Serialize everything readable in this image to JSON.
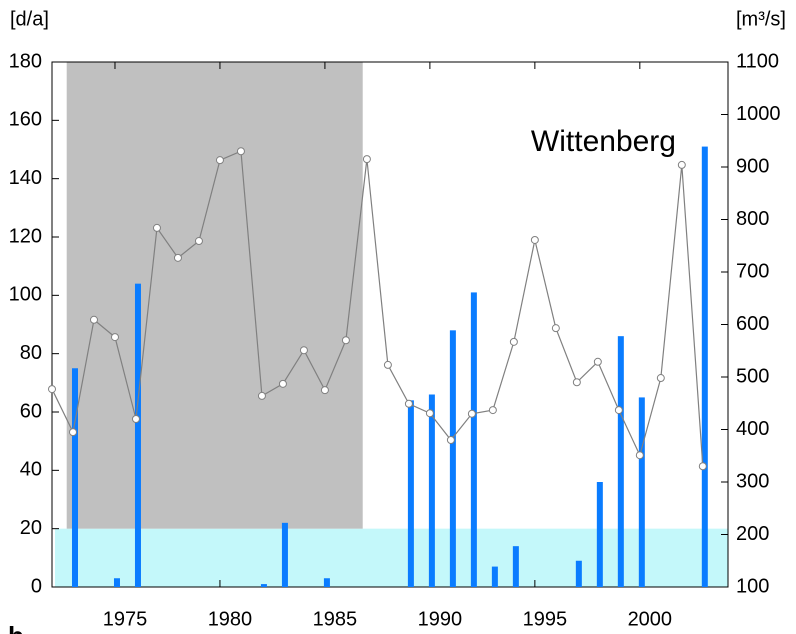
{
  "chart_data": {
    "type": "bar",
    "panel_label": "b",
    "y_label": "[d/a]",
    "y2_label": "[m³/s]",
    "annotation": "Wittenberg",
    "xlim": [
      1972,
      2004.2
    ],
    "xticks": [
      1975,
      1980,
      1985,
      1990,
      1995,
      2000
    ],
    "ylim": [
      0,
      180
    ],
    "yticks": [
      0,
      20,
      40,
      60,
      80,
      100,
      120,
      140,
      160,
      180
    ],
    "y2lim": [
      100,
      1100
    ],
    "y2ticks": [
      100,
      200,
      300,
      400,
      500,
      600,
      700,
      800,
      900,
      1000,
      1100
    ],
    "shaded_region": {
      "x": [
        1972.7,
        1986.8
      ],
      "y": [
        20,
        180
      ],
      "color": "#c0c0c0"
    },
    "threshold_band": {
      "y": [
        0,
        20
      ],
      "color": "#c4f8fa"
    },
    "series": [
      {
        "type": "bar",
        "color": "#0a7cff",
        "x": [
          1973,
          1975,
          1976,
          1982,
          1983,
          1985,
          1989,
          1990,
          1991,
          1992,
          1993,
          1994,
          1997,
          1998,
          1999,
          2000,
          2003
        ],
        "values": [
          75,
          3,
          104,
          1,
          22,
          3,
          64,
          66,
          88,
          101,
          7,
          14,
          9,
          36,
          86,
          65,
          151
        ]
      },
      {
        "type": "line",
        "axis": "y2",
        "color": "#808080",
        "x": [
          1972,
          1973,
          1974,
          1975,
          1976,
          1977,
          1978,
          1979,
          1980,
          1981,
          1982,
          1983,
          1984,
          1985,
          1986,
          1987,
          1988,
          1989,
          1990,
          1991,
          1992,
          1993,
          1994,
          1995,
          1996,
          1997,
          1998,
          1999,
          2000,
          2001,
          2002,
          2003
        ],
        "values": [
          477,
          395,
          609,
          576,
          420,
          784,
          727,
          759,
          913,
          930,
          464,
          487,
          551,
          475,
          570,
          915,
          523,
          449,
          431,
          380,
          430,
          437,
          567,
          761,
          593,
          490,
          529,
          437,
          351,
          498,
          904,
          330
        ]
      }
    ]
  }
}
